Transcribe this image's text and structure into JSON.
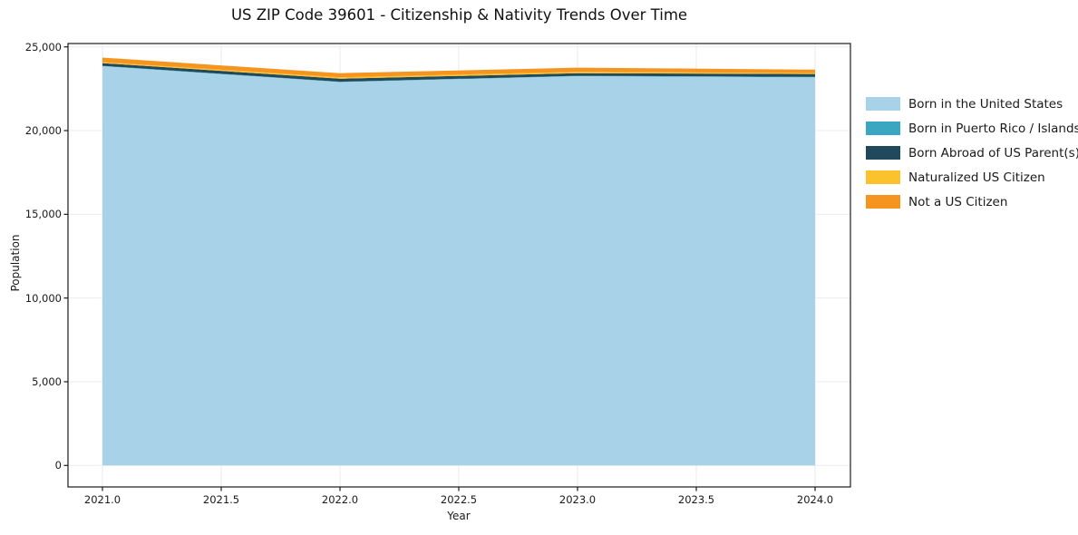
{
  "title": "US ZIP Code 39601 - Citizenship & Nativity Trends Over Time",
  "chart_data": {
    "type": "area",
    "stacked": true,
    "title": "US ZIP Code 39601 - Citizenship & Nativity Trends Over Time",
    "xlabel": "Year",
    "ylabel": "Population",
    "x": [
      2021,
      2022,
      2023,
      2024
    ],
    "series": [
      {
        "name": "Born in the United States",
        "color": "#a7d2e8",
        "values": [
          23850,
          22900,
          23250,
          23180
        ]
      },
      {
        "name": "Born in Puerto Rico / Islands",
        "color": "#3ba6c1",
        "values": [
          20,
          20,
          20,
          30
        ]
      },
      {
        "name": "Born Abroad of US Parent(s)",
        "color": "#204a5c",
        "values": [
          160,
          180,
          160,
          170
        ]
      },
      {
        "name": "Naturalized US Citizen",
        "color": "#fcc22d",
        "values": [
          60,
          80,
          80,
          60
        ]
      },
      {
        "name": "Not a US Citizen",
        "color": "#f5941f",
        "values": [
          270,
          250,
          250,
          200
        ]
      }
    ],
    "x_tick_labels": [
      "2021.0",
      "2021.5",
      "2022.0",
      "2022.5",
      "2023.0",
      "2023.5",
      "2024.0"
    ],
    "x_tick_values": [
      2021,
      2021.5,
      2022,
      2022.5,
      2023,
      2023.5,
      2024
    ],
    "y_tick_labels": [
      "0",
      "5,000",
      "10,000",
      "15,000",
      "20,000",
      "25,000"
    ],
    "y_tick_values": [
      0,
      5000,
      10000,
      15000,
      20000,
      25000
    ],
    "xlim": [
      2020.85,
      2024.15
    ],
    "ylim": [
      -1284,
      25200
    ],
    "grid": true,
    "grid_color": "#ebebeb",
    "axis_color": "#1a1a1a",
    "legend_position": "right-outside",
    "legend_frame": false
  }
}
